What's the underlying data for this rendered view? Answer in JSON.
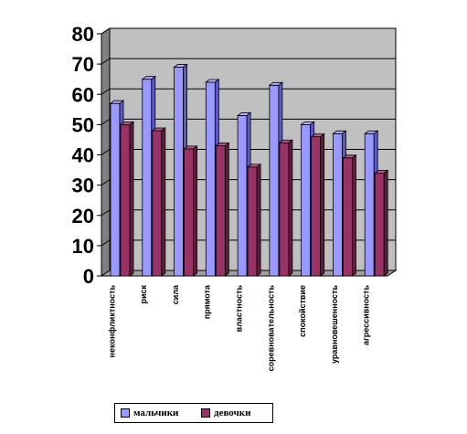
{
  "chart_data": {
    "type": "bar",
    "categories": [
      "неконфликтность",
      "риск",
      "сила",
      "прямота",
      "властность",
      "соревновательность",
      "спокойствие",
      "уравновешенность",
      "агрессивность"
    ],
    "series": [
      {
        "name": "мальчики",
        "values": [
          57,
          65,
          69,
          64,
          53,
          63,
          50,
          47,
          47
        ],
        "color": "#9999ff",
        "top_color": "#b3b3ff",
        "side_color": "#5a5ac8"
      },
      {
        "name": "девочки",
        "values": [
          50,
          48,
          42,
          43,
          36,
          44,
          46,
          39,
          34
        ],
        "color": "#993366",
        "top_color": "#b85a86",
        "side_color": "#5c1f3d"
      }
    ],
    "y_ticks": [
      "0",
      "10",
      "20",
      "30",
      "40",
      "50",
      "60",
      "70",
      "80"
    ],
    "ylim": [
      0,
      80
    ],
    "grid": true,
    "legend_position": "bottom",
    "colors": {
      "wall": "#c0c0c0",
      "floor": "#808080",
      "grid": "#000000"
    }
  }
}
